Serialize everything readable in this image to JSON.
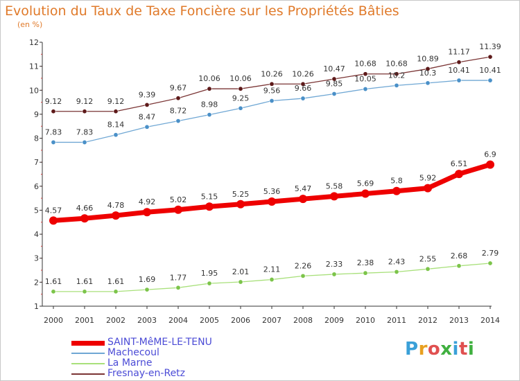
{
  "title": "Evolution du Taux de Taxe Foncière sur les Propriétés Bâties",
  "unit_label": "(en %)",
  "logo_text": "Proxiti",
  "logo_colors": [
    "#3aa0d8",
    "#e8a020",
    "#e05050",
    "#40b040",
    "#3aa0d8",
    "#e05050",
    "#40b040"
  ],
  "chart_data": {
    "type": "line",
    "x": [
      "2000",
      "2001",
      "2002",
      "2003",
      "2004",
      "2005",
      "2006",
      "2007",
      "2008",
      "2009",
      "2010",
      "2011",
      "2012",
      "2013",
      "2014"
    ],
    "ylim": [
      1,
      12
    ],
    "yticks": [
      "1",
      "2",
      "3",
      "4",
      "5",
      "6",
      "7",
      "8",
      "9",
      "10",
      "11",
      "12"
    ],
    "grid": false,
    "legend_position": "bottom-left",
    "series": [
      {
        "name": "SAINT-MêME-LE-TENU",
        "color": "#ee0000",
        "marker": "#ee0000",
        "values": [
          4.57,
          4.66,
          4.78,
          4.92,
          5.02,
          5.15,
          5.25,
          5.36,
          5.47,
          5.58,
          5.69,
          5.8,
          5.92,
          6.51,
          6.9
        ],
        "labels": [
          "4.57",
          "4.66",
          "4.78",
          "4.92",
          "5.02",
          "5.15",
          "5.25",
          "5.36",
          "5.47",
          "5.58",
          "5.69",
          "5.8",
          "5.92",
          "6.51",
          "6.9"
        ]
      },
      {
        "name": "Machecoul",
        "color": "#6fa7d4",
        "marker": "#4a90c8",
        "values": [
          7.83,
          7.83,
          8.14,
          8.47,
          8.72,
          8.98,
          9.25,
          9.56,
          9.66,
          9.85,
          10.05,
          10.2,
          10.3,
          10.41,
          10.41
        ],
        "labels": [
          "7.83",
          "7.83",
          "8.14",
          "8.47",
          "8.72",
          "8.98",
          "9.25",
          "9.56",
          "9.66",
          "9.85",
          "10.05",
          "10.2",
          "10.3",
          "10.41",
          "10.41"
        ]
      },
      {
        "name": "La Marne",
        "color": "#a8e07a",
        "marker": "#7cc44a",
        "values": [
          1.61,
          1.61,
          1.61,
          1.69,
          1.77,
          1.95,
          2.01,
          2.11,
          2.26,
          2.33,
          2.38,
          2.43,
          2.55,
          2.68,
          2.79
        ],
        "labels": [
          "1.61",
          "1.61",
          "1.61",
          "1.69",
          "1.77",
          "1.95",
          "2.01",
          "2.11",
          "2.26",
          "2.33",
          "2.38",
          "2.43",
          "2.55",
          "2.68",
          "2.79"
        ]
      },
      {
        "name": "Fresnay-en-Retz",
        "color": "#7a3434",
        "marker": "#5e1a1a",
        "values": [
          9.12,
          9.12,
          9.12,
          9.39,
          9.67,
          10.06,
          10.06,
          10.26,
          10.26,
          10.47,
          10.68,
          10.68,
          10.89,
          11.17,
          11.39
        ],
        "labels": [
          "9.12",
          "9.12",
          "9.12",
          "9.39",
          "9.67",
          "10.06",
          "10.06",
          "10.26",
          "10.26",
          "10.47",
          "10.68",
          "10.68",
          "10.89",
          "11.17",
          "11.39"
        ]
      }
    ]
  }
}
